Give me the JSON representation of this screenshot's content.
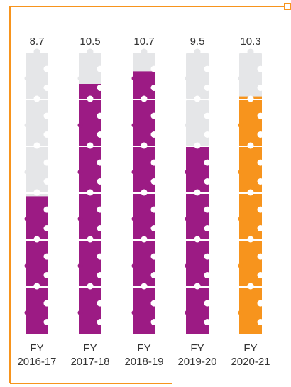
{
  "chart_data": {
    "type": "bar",
    "categories": [
      "FY\n2016-17",
      "FY\n2017-18",
      "FY\n2018-19",
      "FY\n2019-20",
      "FY\n2020-21"
    ],
    "values": [
      8.7,
      10.5,
      10.7,
      9.5,
      10.3
    ],
    "value_labels": [
      "8.7",
      "10.5",
      "10.7",
      "9.5",
      "10.3"
    ],
    "category_lines": [
      [
        "FY",
        "2016-17"
      ],
      [
        "FY",
        "2017-18"
      ],
      [
        "FY",
        "2018-19"
      ],
      [
        "FY",
        "2019-20"
      ],
      [
        "FY",
        "2020-21"
      ]
    ],
    "ylim": [
      6.5,
      11
    ],
    "grid": false,
    "legend": "none",
    "piece_count": 6,
    "colors": {
      "empty": "#e5e6e8",
      "filled": "#9c1b84",
      "highlight": "#f7941d",
      "frame": "#f7941d",
      "text": "#333333"
    },
    "bar_colors": [
      "filled",
      "filled",
      "filled",
      "filled",
      "highlight"
    ]
  }
}
